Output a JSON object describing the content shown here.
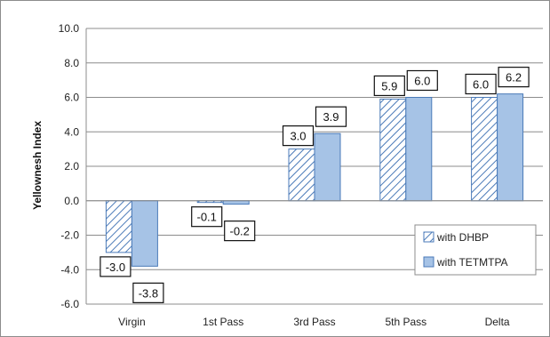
{
  "chart_data": {
    "type": "bar",
    "title": "",
    "xlabel": "",
    "ylabel": "Yellownesh Index",
    "ylim": [
      -6.0,
      10.0
    ],
    "ytick_step": 2.0,
    "yticks": [
      "-6.0",
      "-4.0",
      "-2.0",
      "0.0",
      "2.0",
      "4.0",
      "6.0",
      "8.0",
      "10.0"
    ],
    "categories": [
      "Virgin",
      "1st Pass",
      "3rd Pass",
      "5th Pass",
      "Delta"
    ],
    "grid": true,
    "legend_position": "bottom-right",
    "series": [
      {
        "name": "with DHBP",
        "values": [
          -3.0,
          -0.1,
          3.0,
          5.9,
          6.0
        ],
        "labels": [
          "-3.0",
          "-0.1",
          "3.0",
          "5.9",
          "6.0"
        ],
        "fill": "hatched",
        "color": "#4a7ab8"
      },
      {
        "name": "with TETMTPA",
        "values": [
          -3.8,
          -0.2,
          3.9,
          6.0,
          6.2
        ],
        "labels": [
          "-3.8",
          "-0.2",
          "3.9",
          "6.0",
          "6.2"
        ],
        "fill": "solid",
        "color": "#a6c3e6"
      }
    ]
  }
}
